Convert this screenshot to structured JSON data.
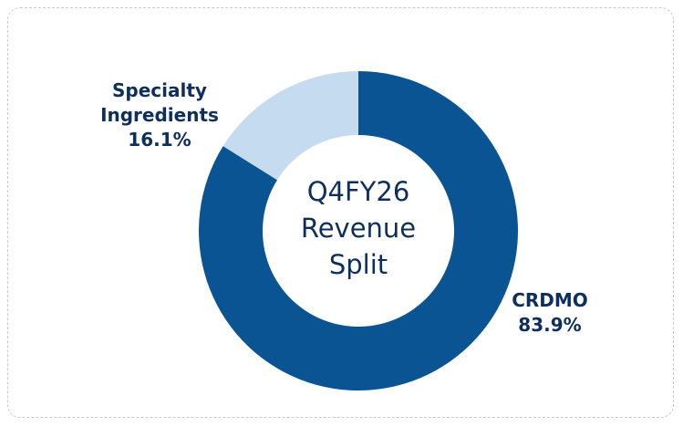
{
  "chart_data": {
    "type": "donut",
    "title": "Q4FY26 Revenue Split",
    "categories": [
      "CRDMO",
      "Specialty Ingredients"
    ],
    "values": [
      83.9,
      16.1
    ],
    "value_labels": [
      "83.9%",
      "16.1%"
    ],
    "colors": [
      "#0b5494",
      "#c5dcf0"
    ]
  }
}
